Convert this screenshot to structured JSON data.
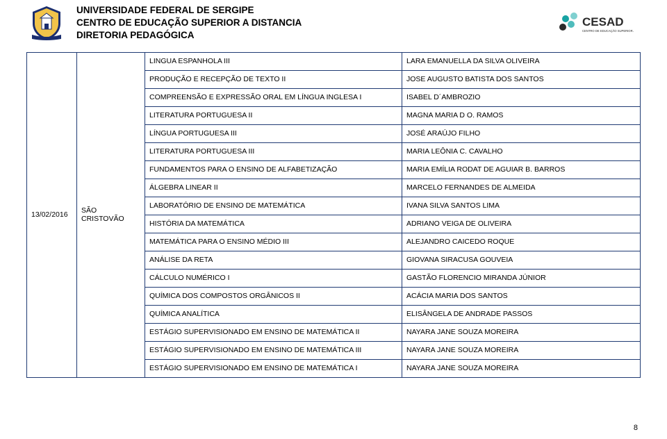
{
  "header": {
    "line1": "UNIVERSIDADE FEDERAL DE SERGIPE",
    "line2": "CENTRO DE EDUCAÇÃO SUPERIOR A DISTANCIA",
    "line3": "DIRETORIA PEDAGÓGICA"
  },
  "colors": {
    "border": "#1f3a73",
    "ufs_blue": "#1b2e6f",
    "ufs_yellow": "#f2c44a",
    "cesad_teal": "#17a3a3",
    "cesad_dark": "#2b2b2b"
  },
  "table": {
    "date": "13/02/2016",
    "location": "SÃO CRISTOVÃO",
    "rows": [
      {
        "course": "LINGUA ESPANHOLA III",
        "person": "LARA EMANUELLA DA SILVA OLIVEIRA"
      },
      {
        "course": "PRODUÇÃO E RECEPÇÃO DE TEXTO II",
        "person": "JOSE AUGUSTO BATISTA DOS SANTOS"
      },
      {
        "course": "COMPREENSÃO E EXPRESSÃO ORAL EM LÍNGUA INGLESA I",
        "person": "ISABEL D´AMBROZIO"
      },
      {
        "course": "LITERATURA PORTUGUESA II",
        "person": "MAGNA MARIA D O. RAMOS"
      },
      {
        "course": "LÍNGUA PORTUGUESA III",
        "person": "JOSÉ ARAÚJO FILHO"
      },
      {
        "course": "LITERATURA PORTUGUESA III",
        "person": "MARIA LEÔNIA C. CAVALHO"
      },
      {
        "course": "FUNDAMENTOS PARA O ENSINO DE ALFABETIZAÇÃO",
        "person": "MARIA EMÍLIA RODAT DE AGUIAR B. BARROS"
      },
      {
        "course": "ÁLGEBRA LINEAR II",
        "person": "MARCELO FERNANDES DE ALMEIDA"
      },
      {
        "course": "LABORATÓRIO DE ENSINO DE MATEMÁTICA",
        "person": "IVANA SILVA SANTOS LIMA"
      },
      {
        "course": "HISTÓRIA DA MATEMÁTICA",
        "person": "ADRIANO VEIGA DE OLIVEIRA"
      },
      {
        "course": "MATEMÁTICA PARA O ENSINO MÉDIO III",
        "person": "ALEJANDRO CAICEDO ROQUE"
      },
      {
        "course": "ANÁLISE DA RETA",
        "person": "GIOVANA SIRACUSA GOUVEIA"
      },
      {
        "course": "CÁLCULO NUMÉRICO I",
        "person": "GASTÃO FLORENCIO MIRANDA JÚNIOR"
      },
      {
        "course": "QUÍMICA DOS COMPOSTOS ORGÂNICOS II",
        "person": "ACÁCIA MARIA DOS SANTOS"
      },
      {
        "course": "QUÍMICA ANALÍTICA",
        "person": "ELISÂNGELA DE ANDRADE PASSOS"
      },
      {
        "course": "ESTÁGIO SUPERVISIONADO EM ENSINO DE MATEMÁTICA II",
        "person": "NAYARA JANE SOUZA MOREIRA"
      },
      {
        "course": "ESTÁGIO SUPERVISIONADO EM ENSINO DE MATEMÁTICA III",
        "person": "NAYARA JANE SOUZA MOREIRA"
      },
      {
        "course": "ESTÁGIO SUPERVISIONADO EM ENSINO DE MATEMÁTICA I",
        "person": "NAYARA JANE SOUZA MOREIRA"
      }
    ]
  },
  "page_number": "8"
}
